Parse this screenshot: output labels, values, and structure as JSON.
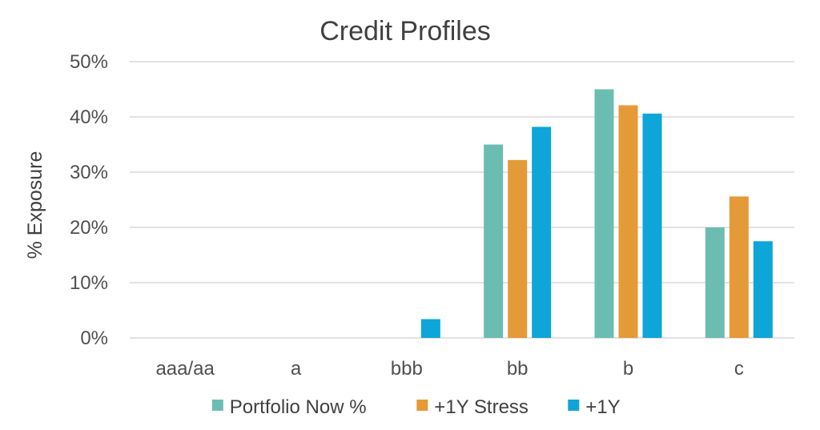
{
  "chart_data": {
    "type": "bar",
    "title": "Credit Profiles",
    "xlabel": "",
    "ylabel": "% Exposure",
    "categories": [
      "aaa/aa",
      "a",
      "bbb",
      "bb",
      "b",
      "c"
    ],
    "y_ticks": [
      "0%",
      "10%",
      "20%",
      "30%",
      "40%",
      "50%"
    ],
    "ylim": [
      0,
      50
    ],
    "grid": true,
    "legend_position": "bottom",
    "series": [
      {
        "name": "Portfolio Now %",
        "color": "#6bbdb1",
        "values": [
          0,
          0,
          0,
          35,
          45,
          20
        ]
      },
      {
        "name": "+1Y Stress",
        "color": "#e59a38",
        "values": [
          0,
          0,
          0,
          32.2,
          42.1,
          25.6
        ]
      },
      {
        "name": "+1Y",
        "color": "#0ea5d8",
        "values": [
          0,
          0,
          3.4,
          38.2,
          40.6,
          17.5
        ]
      }
    ]
  }
}
